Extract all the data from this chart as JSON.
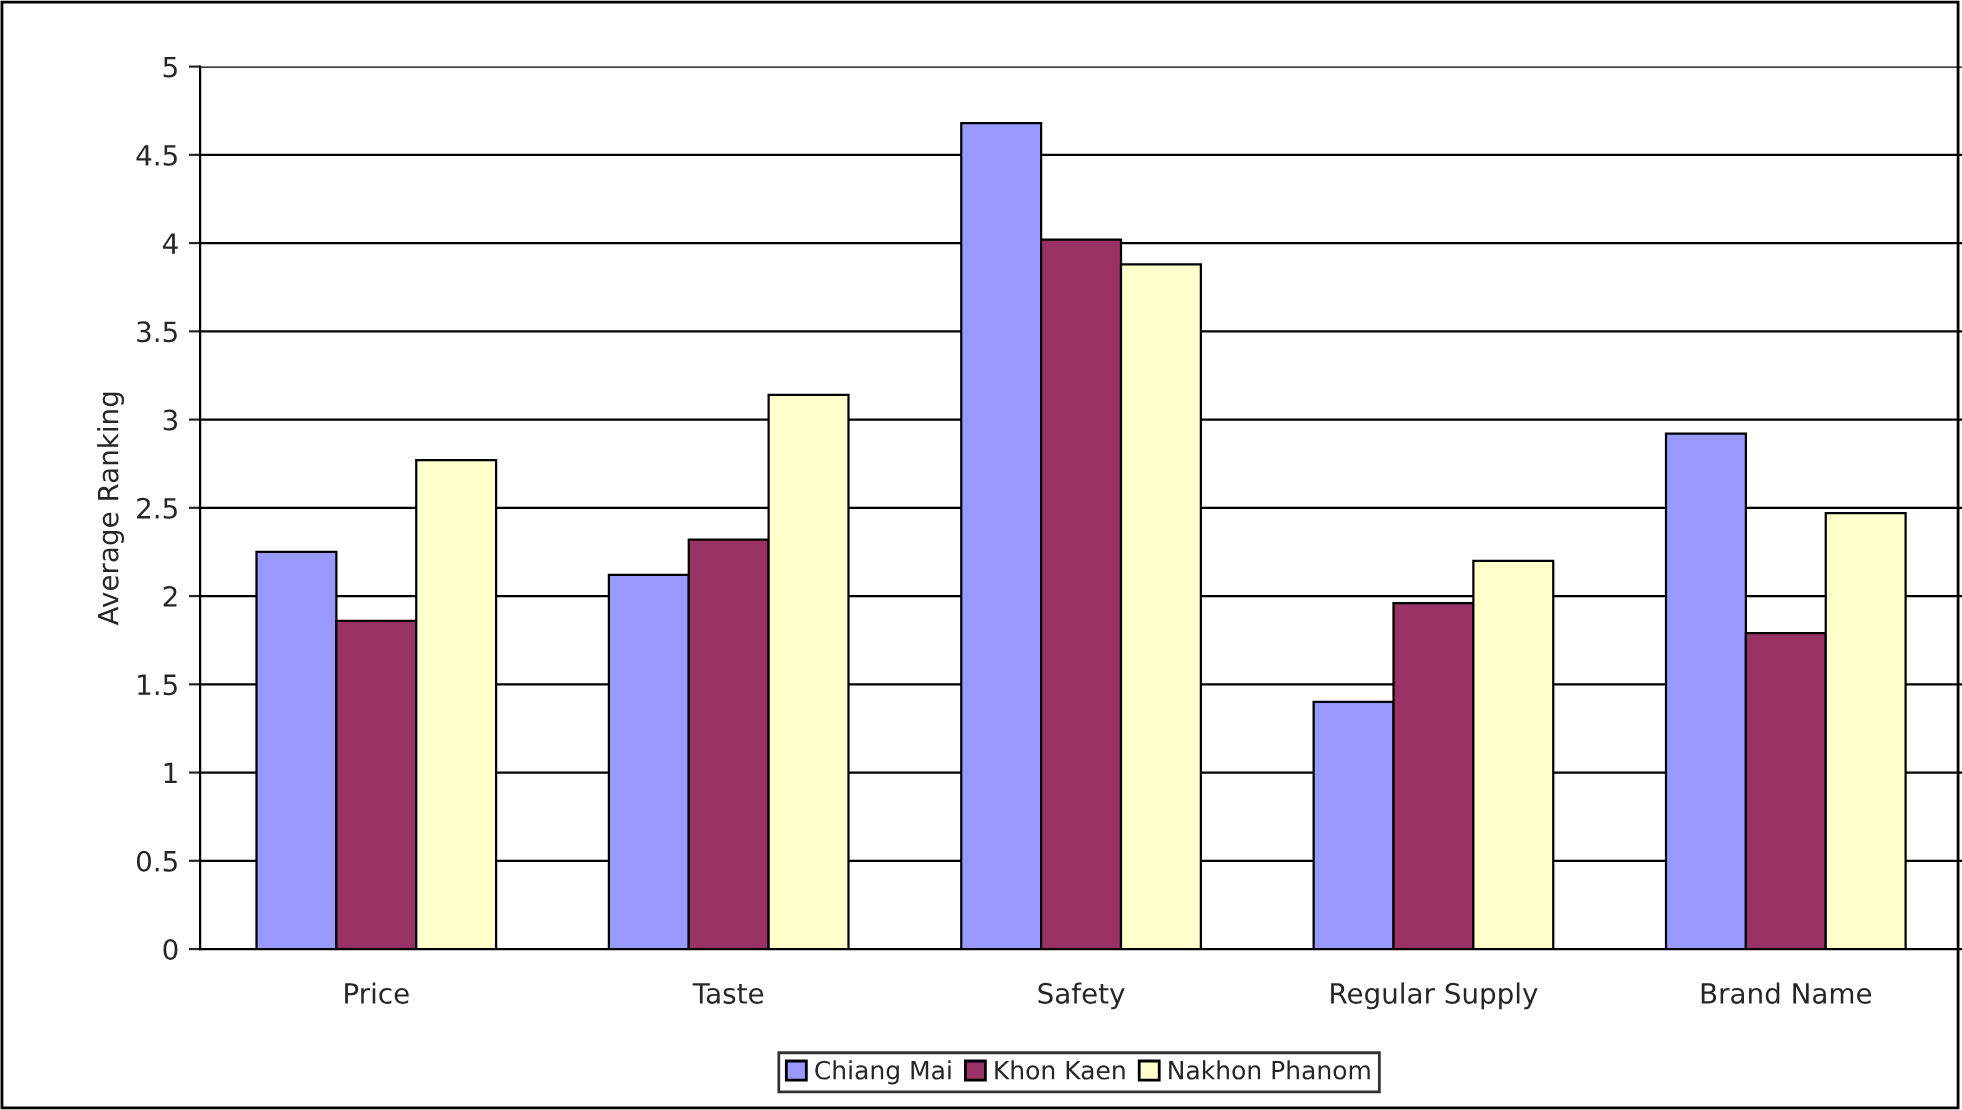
{
  "chart_data": {
    "type": "bar",
    "ylabel": "Average Ranking",
    "categories": [
      "Price",
      "Taste",
      "Safety",
      "Regular Supply",
      "Brand Name"
    ],
    "series": [
      {
        "name": "Chiang Mai",
        "color": "#9999ff",
        "values": [
          2.25,
          2.12,
          4.68,
          1.4,
          2.92
        ]
      },
      {
        "name": "Khon Kaen",
        "color": "#993366",
        "values": [
          1.86,
          2.32,
          4.02,
          1.96,
          1.79
        ]
      },
      {
        "name": "Nakhon Phanom",
        "color": "#ffffcc",
        "values": [
          2.77,
          3.14,
          3.88,
          2.2,
          2.47
        ]
      }
    ],
    "ylim": [
      0,
      5
    ],
    "yticks": [
      0,
      0.5,
      1,
      1.5,
      2,
      2.5,
      3,
      3.5,
      4,
      4.5,
      5
    ],
    "grid": "y",
    "legend": "bottom"
  }
}
